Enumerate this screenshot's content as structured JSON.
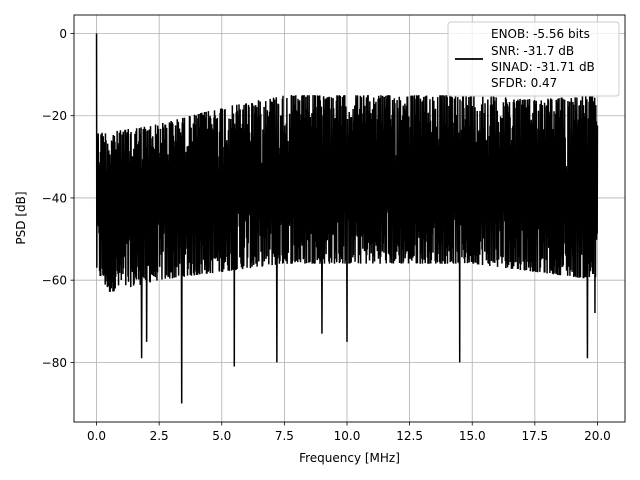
{
  "chart_data": {
    "type": "line",
    "title": "",
    "xlabel": "Frequency [MHz]",
    "ylabel": "PSD [dB]",
    "xlim": [
      -0.9,
      21.1
    ],
    "ylim": [
      -94.5,
      4.5
    ],
    "xticks": [
      0.0,
      2.5,
      5.0,
      7.5,
      10.0,
      12.5,
      15.0,
      17.5,
      20.0
    ],
    "xtick_labels": [
      "0.0",
      "2.5",
      "5.0",
      "7.5",
      "10.0",
      "12.5",
      "15.0",
      "17.5",
      "20.0"
    ],
    "yticks": [
      0,
      -20,
      -40,
      -60,
      -80
    ],
    "ytick_labels": [
      "0",
      "−20",
      "−40",
      "−60",
      "−80"
    ],
    "grid": true,
    "legend": {
      "placement": "top-right",
      "lines": [
        "ENOB: -5.56 bits",
        "SNR: -31.7 dB",
        "SINAD: -31.71 dB",
        "SFDR: 0.47"
      ]
    },
    "series": [
      {
        "color": "#000000",
        "envelope": {
          "x": [
            0.0,
            0.5,
            2.5,
            5.0,
            7.5,
            10.0,
            12.5,
            15.0,
            17.5,
            20.0
          ],
          "upper": [
            -24,
            -24,
            -22,
            -18,
            -15,
            -15,
            -15,
            -15,
            -16,
            -15
          ],
          "lower": [
            -58,
            -63,
            -60,
            -58,
            -56,
            -56,
            -56,
            -56,
            -58,
            -60
          ]
        },
        "peaks": [
          {
            "x": 0.0,
            "y": 0
          },
          {
            "x": 0.05,
            "y": -46
          },
          {
            "x": 3.4,
            "y": -90
          },
          {
            "x": 5.5,
            "y": -81
          },
          {
            "x": 7.2,
            "y": -80
          },
          {
            "x": 1.8,
            "y": -79
          },
          {
            "x": 2.0,
            "y": -75
          },
          {
            "x": 9.0,
            "y": -73
          },
          {
            "x": 10.0,
            "y": -75
          },
          {
            "x": 14.5,
            "y": -80
          },
          {
            "x": 19.6,
            "y": -79
          },
          {
            "x": 19.9,
            "y": -68
          }
        ]
      }
    ]
  }
}
